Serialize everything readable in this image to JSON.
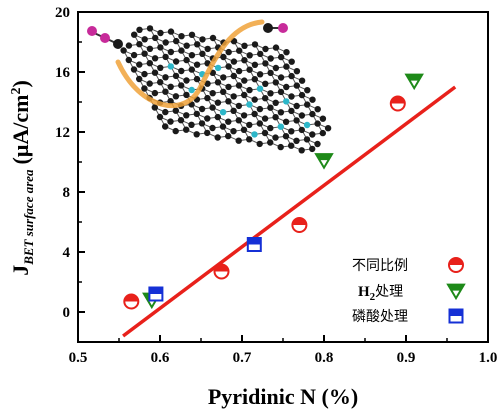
{
  "chart_data": {
    "type": "scatter",
    "xlabel": "Pyridinic N (%)",
    "ylabel": {
      "main": "J",
      "subscript": "BET surface area",
      "unit": "(μA/cm",
      "unit_sup": "2",
      "unit_close": ")"
    },
    "xlim": [
      0.5,
      1.0
    ],
    "ylim": [
      -2,
      20
    ],
    "x_ticks": [
      0.5,
      0.6,
      0.7,
      0.8,
      0.9,
      1.0
    ],
    "x_tick_labels": [
      "0.5",
      "0.6",
      "0.7",
      "0.8",
      "0.9",
      "1.0"
    ],
    "y_ticks": [
      0,
      4,
      8,
      12,
      16,
      20
    ],
    "y_tick_labels": [
      "0",
      "4",
      "8",
      "12",
      "16",
      "20"
    ],
    "grid": false,
    "legend_position": "bottom-right",
    "series": [
      {
        "name": "不同比例",
        "marker": "half-circle",
        "color": "#e8211b",
        "points": [
          [
            0.565,
            0.7
          ],
          [
            0.675,
            2.7
          ],
          [
            0.77,
            5.8
          ],
          [
            0.89,
            13.9
          ]
        ]
      },
      {
        "name_main": "H",
        "name_sub": "2",
        "name_tail": "处理",
        "marker": "triangle-down",
        "color": "#1e8a19",
        "points": [
          [
            0.59,
            0.8
          ],
          [
            0.8,
            10.1
          ],
          [
            0.91,
            15.4
          ]
        ]
      },
      {
        "name": "磷酸处理",
        "marker": "half-square",
        "color": "#1530d6",
        "points": [
          [
            0.595,
            1.2
          ],
          [
            0.715,
            4.5
          ]
        ]
      }
    ],
    "fit_line": {
      "color": "#e8211b",
      "x": [
        0.555,
        0.96
      ],
      "y": [
        -1.6,
        15.0
      ]
    },
    "inset": {
      "type": "graphene-nitrogen-doped-sheet-illustration",
      "colors": {
        "carbon": "#1a1a1a",
        "nitrogen": "#2db7c9",
        "ribbon": "#f0a23a",
        "hydrogen": "#c72b9a"
      }
    }
  }
}
